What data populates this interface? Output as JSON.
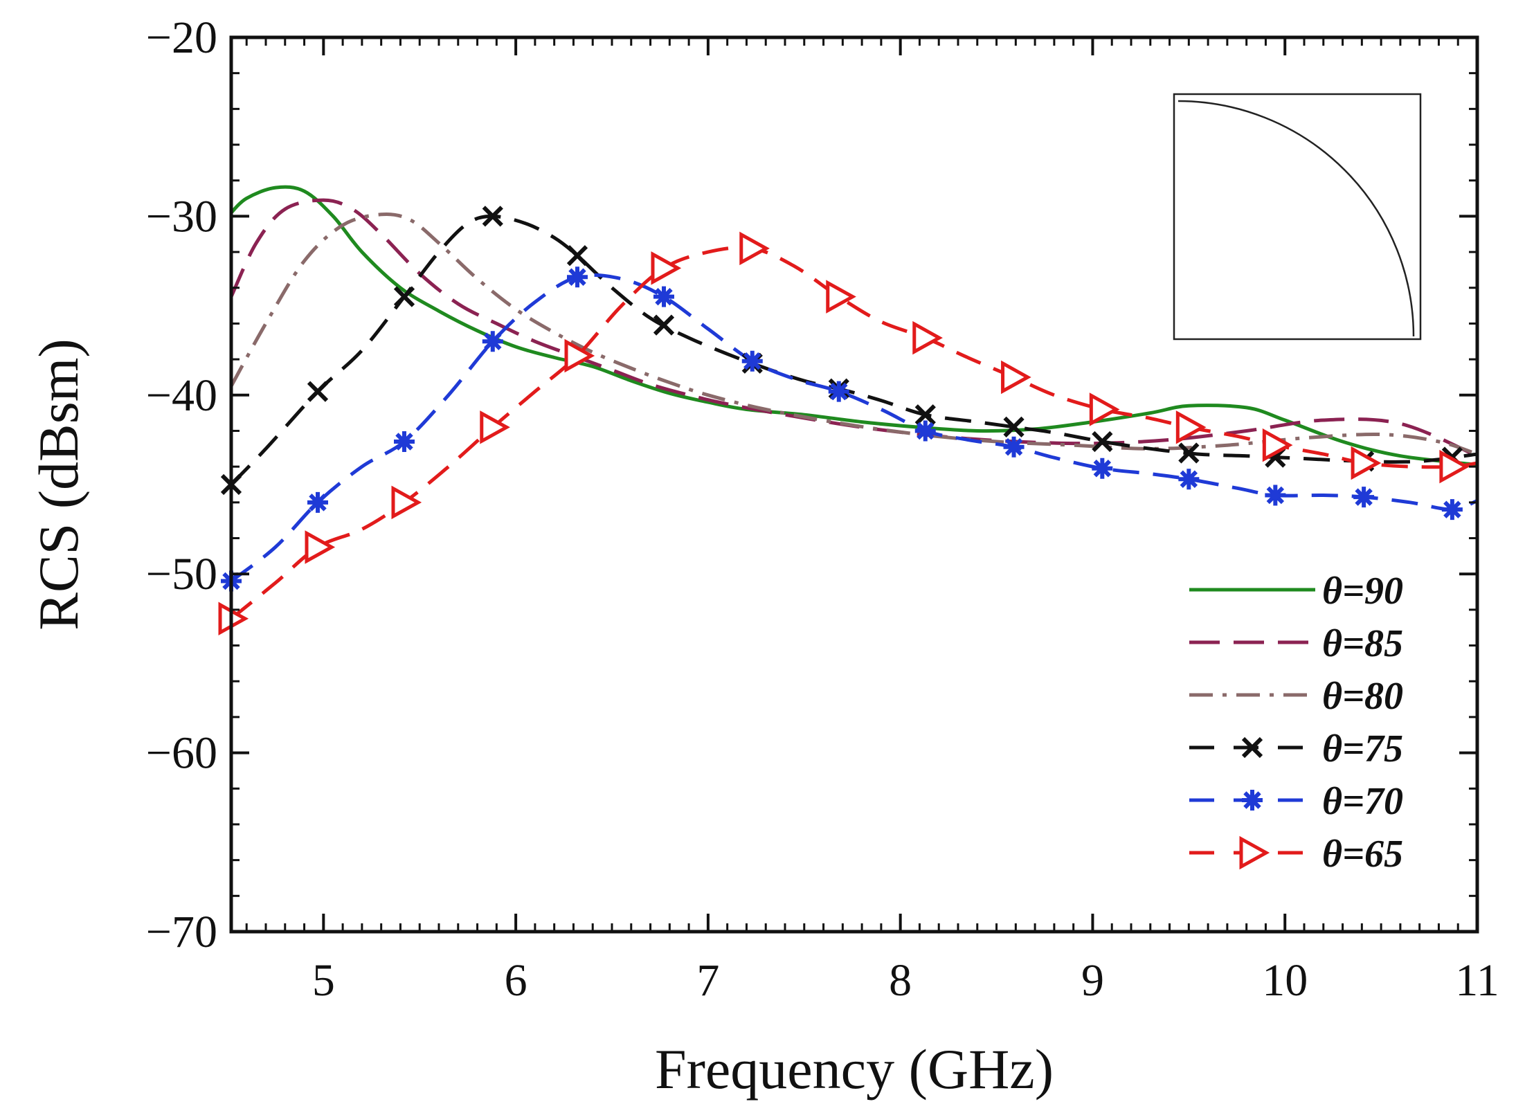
{
  "chart_data": {
    "type": "line",
    "xlabel": "Frequency (GHz)",
    "ylabel": "RCS (dBsm)",
    "xlim": [
      4.52,
      11
    ],
    "ylim": [
      -70,
      -20
    ],
    "x_ticks": [
      5,
      6,
      7,
      8,
      9,
      10,
      11
    ],
    "y_ticks": [
      -20,
      -30,
      -40,
      -50,
      -60,
      -70
    ],
    "x_tick_labels": [
      "5",
      "6",
      "7",
      "8",
      "9",
      "10",
      "11"
    ],
    "y_tick_labels": [
      "−20",
      "−30",
      "−40",
      "−50",
      "−60",
      "−70"
    ],
    "grid": false,
    "legend_position": "bottom-right",
    "inset": "quarter-circle arc profile (top-right)",
    "series": [
      {
        "name": "θ=90",
        "color": "#1f8a1f",
        "dash": "solid",
        "marker": "none",
        "points": [
          [
            4.52,
            -29.8
          ],
          [
            4.6,
            -29.0
          ],
          [
            4.75,
            -28.4
          ],
          [
            4.9,
            -28.6
          ],
          [
            5.05,
            -30.0
          ],
          [
            5.2,
            -32.0
          ],
          [
            5.4,
            -34.0
          ],
          [
            5.6,
            -35.3
          ],
          [
            5.8,
            -36.4
          ],
          [
            6.0,
            -37.3
          ],
          [
            6.2,
            -37.9
          ],
          [
            6.4,
            -38.4
          ],
          [
            6.6,
            -39.2
          ],
          [
            6.8,
            -39.9
          ],
          [
            7.0,
            -40.4
          ],
          [
            7.2,
            -40.8
          ],
          [
            7.5,
            -41.1
          ],
          [
            7.8,
            -41.5
          ],
          [
            8.1,
            -41.8
          ],
          [
            8.4,
            -42.0
          ],
          [
            8.7,
            -41.9
          ],
          [
            9.0,
            -41.5
          ],
          [
            9.3,
            -41.0
          ],
          [
            9.5,
            -40.6
          ],
          [
            9.8,
            -40.7
          ],
          [
            10.0,
            -41.4
          ],
          [
            10.3,
            -42.6
          ],
          [
            10.6,
            -43.4
          ],
          [
            11.0,
            -43.9
          ]
        ]
      },
      {
        "name": "θ=85",
        "color": "#8b2252",
        "dash": "long-dash",
        "marker": "none",
        "points": [
          [
            4.52,
            -34.5
          ],
          [
            4.65,
            -31.5
          ],
          [
            4.8,
            -29.6
          ],
          [
            5.0,
            -29.1
          ],
          [
            5.15,
            -29.6
          ],
          [
            5.3,
            -31.0
          ],
          [
            5.5,
            -33.2
          ],
          [
            5.7,
            -34.9
          ],
          [
            5.9,
            -36.0
          ],
          [
            6.1,
            -37.0
          ],
          [
            6.3,
            -37.8
          ],
          [
            6.5,
            -38.6
          ],
          [
            6.7,
            -39.4
          ],
          [
            6.9,
            -40.0
          ],
          [
            7.1,
            -40.5
          ],
          [
            7.4,
            -41.1
          ],
          [
            7.8,
            -41.8
          ],
          [
            8.2,
            -42.3
          ],
          [
            8.6,
            -42.6
          ],
          [
            9.0,
            -42.7
          ],
          [
            9.4,
            -42.5
          ],
          [
            9.8,
            -42.0
          ],
          [
            10.2,
            -41.4
          ],
          [
            10.6,
            -41.6
          ],
          [
            11.0,
            -43.4
          ]
        ]
      },
      {
        "name": "θ=80",
        "color": "#8a6a6a",
        "dash": "dash-dot",
        "marker": "none",
        "points": [
          [
            4.52,
            -39.5
          ],
          [
            4.7,
            -36.0
          ],
          [
            4.9,
            -32.5
          ],
          [
            5.1,
            -30.5
          ],
          [
            5.3,
            -29.9
          ],
          [
            5.45,
            -30.2
          ],
          [
            5.6,
            -31.5
          ],
          [
            5.8,
            -33.5
          ],
          [
            6.0,
            -35.2
          ],
          [
            6.2,
            -36.5
          ],
          [
            6.4,
            -37.6
          ],
          [
            6.6,
            -38.5
          ],
          [
            6.8,
            -39.3
          ],
          [
            7.0,
            -40.0
          ],
          [
            7.3,
            -40.8
          ],
          [
            7.7,
            -41.6
          ],
          [
            8.1,
            -42.2
          ],
          [
            8.5,
            -42.6
          ],
          [
            8.9,
            -42.8
          ],
          [
            9.3,
            -43.0
          ],
          [
            9.7,
            -42.8
          ],
          [
            10.1,
            -42.4
          ],
          [
            10.5,
            -42.2
          ],
          [
            10.8,
            -42.6
          ],
          [
            11.0,
            -43.3
          ]
        ]
      },
      {
        "name": "θ=75",
        "color": "#111111",
        "dash": "dash",
        "marker": "x",
        "points": [
          [
            4.52,
            -45.0
          ],
          [
            4.7,
            -43.0
          ],
          [
            4.97,
            -39.8
          ],
          [
            5.2,
            -37.5
          ],
          [
            5.42,
            -34.5
          ],
          [
            5.6,
            -32.0
          ],
          [
            5.75,
            -30.4
          ],
          [
            5.88,
            -30.0
          ],
          [
            6.05,
            -30.4
          ],
          [
            6.2,
            -31.2
          ],
          [
            6.32,
            -32.2
          ],
          [
            6.5,
            -34.0
          ],
          [
            6.7,
            -35.7
          ],
          [
            6.9,
            -36.8
          ],
          [
            7.1,
            -37.7
          ],
          [
            7.3,
            -38.5
          ],
          [
            7.5,
            -39.2
          ],
          [
            7.7,
            -39.7
          ],
          [
            7.9,
            -40.3
          ],
          [
            8.13,
            -41.1
          ],
          [
            8.4,
            -41.5
          ],
          [
            8.6,
            -41.8
          ],
          [
            8.8,
            -42.1
          ],
          [
            9.05,
            -42.6
          ],
          [
            9.3,
            -43.0
          ],
          [
            9.55,
            -43.3
          ],
          [
            9.8,
            -43.4
          ],
          [
            10.0,
            -43.5
          ],
          [
            10.4,
            -43.7
          ],
          [
            10.7,
            -43.7
          ],
          [
            11.0,
            -43.3
          ]
        ],
        "markers_x": [
          4.52,
          4.97,
          5.42,
          5.88,
          6.32,
          6.77,
          7.23,
          7.68,
          8.13,
          8.59,
          9.05,
          9.5,
          9.95,
          10.41,
          10.87
        ]
      },
      {
        "name": "θ=70",
        "color": "#1f3ad6",
        "dash": "dash",
        "marker": "asterisk",
        "points": [
          [
            4.52,
            -50.4
          ],
          [
            4.75,
            -48.5
          ],
          [
            4.97,
            -46.0
          ],
          [
            5.2,
            -44.0
          ],
          [
            5.42,
            -42.6
          ],
          [
            5.65,
            -40.0
          ],
          [
            5.88,
            -37.0
          ],
          [
            6.1,
            -34.8
          ],
          [
            6.32,
            -33.4
          ],
          [
            6.55,
            -33.5
          ],
          [
            6.77,
            -34.5
          ],
          [
            7.0,
            -36.3
          ],
          [
            7.23,
            -38.1
          ],
          [
            7.45,
            -39.1
          ],
          [
            7.68,
            -39.8
          ],
          [
            7.9,
            -40.8
          ],
          [
            8.13,
            -42.0
          ],
          [
            8.35,
            -42.5
          ],
          [
            8.59,
            -42.9
          ],
          [
            8.8,
            -43.5
          ],
          [
            9.05,
            -44.1
          ],
          [
            9.3,
            -44.4
          ],
          [
            9.5,
            -44.7
          ],
          [
            9.75,
            -45.2
          ],
          [
            9.95,
            -45.6
          ],
          [
            10.2,
            -45.6
          ],
          [
            10.41,
            -45.7
          ],
          [
            10.65,
            -46.0
          ],
          [
            10.87,
            -46.4
          ],
          [
            11.0,
            -45.9
          ]
        ],
        "markers_x": [
          4.52,
          4.97,
          5.42,
          5.88,
          6.32,
          6.77,
          7.23,
          7.68,
          8.13,
          8.59,
          9.05,
          9.5,
          9.95,
          10.41,
          10.87
        ]
      },
      {
        "name": "θ=65",
        "color": "#e21b1b",
        "dash": "dash",
        "marker": "triangle-right",
        "points": [
          [
            4.52,
            -52.5
          ],
          [
            4.75,
            -50.5
          ],
          [
            4.97,
            -48.5
          ],
          [
            5.2,
            -47.5
          ],
          [
            5.42,
            -46.0
          ],
          [
            5.65,
            -44.0
          ],
          [
            5.88,
            -41.8
          ],
          [
            6.1,
            -39.8
          ],
          [
            6.32,
            -37.8
          ],
          [
            6.55,
            -35.0
          ],
          [
            6.77,
            -32.9
          ],
          [
            7.0,
            -32.0
          ],
          [
            7.23,
            -31.8
          ],
          [
            7.45,
            -32.8
          ],
          [
            7.68,
            -34.5
          ],
          [
            7.9,
            -35.9
          ],
          [
            8.13,
            -36.8
          ],
          [
            8.35,
            -37.9
          ],
          [
            8.59,
            -39.0
          ],
          [
            8.8,
            -40.0
          ],
          [
            9.05,
            -40.8
          ],
          [
            9.3,
            -41.3
          ],
          [
            9.5,
            -41.8
          ],
          [
            9.75,
            -42.3
          ],
          [
            9.95,
            -42.8
          ],
          [
            10.2,
            -43.3
          ],
          [
            10.41,
            -43.8
          ],
          [
            10.65,
            -44.0
          ],
          [
            10.87,
            -44.0
          ],
          [
            11.0,
            -43.8
          ]
        ],
        "markers_x": [
          4.52,
          4.97,
          5.42,
          5.88,
          6.32,
          6.77,
          7.23,
          7.68,
          8.13,
          8.59,
          9.05,
          9.5,
          9.95,
          10.41,
          10.87
        ]
      }
    ]
  }
}
